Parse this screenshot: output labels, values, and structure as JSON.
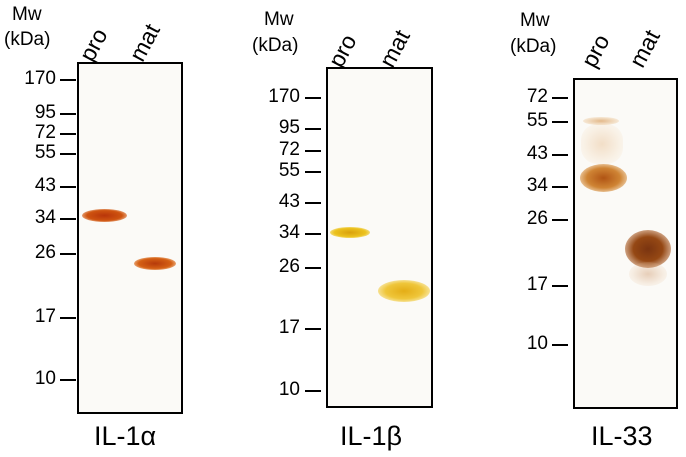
{
  "panels": [
    {
      "mw_label": "Mw",
      "kda_label": "(kDa)",
      "lane_labels": [
        "pro",
        "mat"
      ],
      "markers": [
        "170",
        "95",
        "72",
        "55",
        "43",
        "34",
        "26",
        "17",
        "10"
      ],
      "name": "IL-1α"
    },
    {
      "mw_label": "Mw",
      "kda_label": "(kDa)",
      "lane_labels": [
        "pro",
        "mat"
      ],
      "markers": [
        "170",
        "95",
        "72",
        "55",
        "43",
        "34",
        "26",
        "17",
        "10"
      ],
      "name": "IL-1β"
    },
    {
      "mw_label": "Mw",
      "kda_label": "(kDa)",
      "lane_labels": [
        "pro",
        "mat"
      ],
      "markers": [
        "72",
        "55",
        "43",
        "34",
        "26",
        "17",
        "10"
      ],
      "name": "IL-33"
    }
  ],
  "colors": {
    "il1a_band": "#c0410e",
    "il1b_band": "#e7b81a",
    "il33_band": "#9a4a18"
  }
}
